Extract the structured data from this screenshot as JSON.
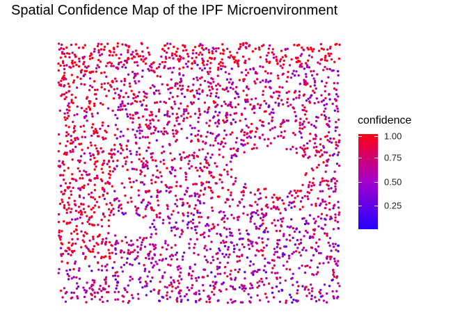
{
  "chart_data": {
    "type": "scatter",
    "title": "Spatial Confidence Map of the IPF Microenvironment",
    "xlabel": "",
    "ylabel": "",
    "axes_visible": false,
    "grid": false,
    "color_scale": {
      "variable": "confidence",
      "low_color": "#2400ff",
      "mid_color": "#a300cc",
      "high_color": "#ff0011",
      "range": [
        0.0,
        1.0
      ],
      "breaks": [
        1.0,
        0.75,
        0.5,
        0.25
      ],
      "break_labels": [
        "1.00",
        "0.75",
        "0.50",
        "0.25"
      ]
    },
    "legend": {
      "title": "confidence",
      "placement": "right"
    },
    "xlim": [
      0,
      100
    ],
    "ylim": [
      0,
      100
    ],
    "point_count_estimate": 3000,
    "regions": {
      "high_confidence_band": {
        "x": [
          0,
          100
        ],
        "y": [
          92,
          100
        ],
        "mean_confidence": 0.9
      },
      "high_confidence_left": {
        "x": [
          0,
          20
        ],
        "y": [
          15,
          90
        ],
        "mean_confidence": 0.85
      },
      "empty_lumen_1": {
        "center": [
          75,
          52
        ],
        "radius": [
          13,
          8
        ]
      },
      "empty_lumen_2": {
        "center": [
          25,
          30
        ],
        "radius": [
          7,
          4
        ]
      },
      "lower_mixed": {
        "x": [
          0,
          100
        ],
        "y": [
          0,
          35
        ],
        "mean_confidence": 0.55
      }
    }
  }
}
